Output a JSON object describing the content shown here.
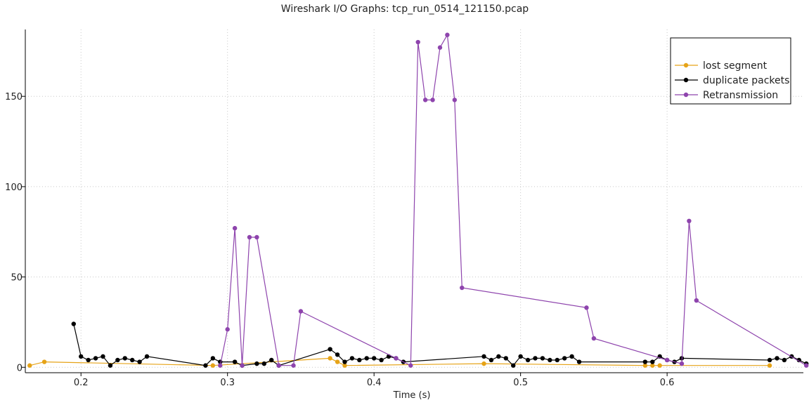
{
  "chart_data": {
    "type": "line",
    "title": "Wireshark I/O Graphs: tcp_run_0514_121150.pcap",
    "xlabel": "Time (s)",
    "ylabel": "",
    "xlim": [
      0.162,
      0.693
    ],
    "ylim": [
      -3,
      187
    ],
    "x_ticks": [
      0.2,
      0.3,
      0.4,
      0.5,
      0.6
    ],
    "x_tick_labels": [
      "0.2",
      "0.3",
      "0.4",
      "0.5",
      "0.6"
    ],
    "y_ticks": [
      0,
      50,
      100,
      150
    ],
    "y_tick_labels": [
      "0",
      "50",
      "100",
      "150"
    ],
    "grid": true,
    "legend_position": "top-right",
    "series": [
      {
        "name": "lost segment",
        "color": "#e6a317",
        "points": [
          [
            0.165,
            1
          ],
          [
            0.175,
            3
          ],
          [
            0.29,
            1
          ],
          [
            0.37,
            5
          ],
          [
            0.375,
            3
          ],
          [
            0.38,
            1
          ],
          [
            0.475,
            2
          ],
          [
            0.585,
            1
          ],
          [
            0.59,
            1
          ],
          [
            0.595,
            1
          ],
          [
            0.67,
            1
          ]
        ]
      },
      {
        "name": "duplicate packets",
        "color": "#000000",
        "points": [
          [
            0.195,
            24
          ],
          [
            0.2,
            6
          ],
          [
            0.205,
            4
          ],
          [
            0.21,
            5
          ],
          [
            0.215,
            6
          ],
          [
            0.22,
            1
          ],
          [
            0.225,
            4
          ],
          [
            0.23,
            5
          ],
          [
            0.235,
            4
          ],
          [
            0.24,
            3
          ],
          [
            0.245,
            6
          ],
          [
            0.285,
            1
          ],
          [
            0.29,
            5
          ],
          [
            0.295,
            3
          ],
          [
            0.305,
            3
          ],
          [
            0.31,
            1
          ],
          [
            0.32,
            2
          ],
          [
            0.325,
            2
          ],
          [
            0.33,
            4
          ],
          [
            0.335,
            1
          ],
          [
            0.37,
            10
          ],
          [
            0.375,
            7
          ],
          [
            0.38,
            3
          ],
          [
            0.385,
            5
          ],
          [
            0.39,
            4
          ],
          [
            0.395,
            5
          ],
          [
            0.4,
            5
          ],
          [
            0.405,
            4
          ],
          [
            0.41,
            6
          ],
          [
            0.415,
            5
          ],
          [
            0.42,
            3
          ],
          [
            0.475,
            6
          ],
          [
            0.48,
            4
          ],
          [
            0.485,
            6
          ],
          [
            0.49,
            5
          ],
          [
            0.495,
            1
          ],
          [
            0.5,
            6
          ],
          [
            0.505,
            4
          ],
          [
            0.51,
            5
          ],
          [
            0.515,
            5
          ],
          [
            0.52,
            4
          ],
          [
            0.525,
            4
          ],
          [
            0.53,
            5
          ],
          [
            0.535,
            6
          ],
          [
            0.54,
            3
          ],
          [
            0.585,
            3
          ],
          [
            0.59,
            3
          ],
          [
            0.595,
            6
          ],
          [
            0.6,
            4
          ],
          [
            0.605,
            3
          ],
          [
            0.61,
            5
          ],
          [
            0.67,
            4
          ],
          [
            0.675,
            5
          ],
          [
            0.68,
            4
          ],
          [
            0.685,
            6
          ],
          [
            0.69,
            4
          ],
          [
            0.695,
            2
          ]
        ]
      },
      {
        "name": "Retransmission",
        "color": "#8e44ad",
        "points": [
          [
            0.295,
            1
          ],
          [
            0.3,
            21
          ],
          [
            0.305,
            77
          ],
          [
            0.31,
            1
          ],
          [
            0.315,
            72
          ],
          [
            0.32,
            72
          ],
          [
            0.335,
            1
          ],
          [
            0.345,
            1
          ],
          [
            0.35,
            31
          ],
          [
            0.415,
            5
          ],
          [
            0.425,
            1
          ],
          [
            0.43,
            180
          ],
          [
            0.435,
            148
          ],
          [
            0.44,
            148
          ],
          [
            0.445,
            177
          ],
          [
            0.45,
            184
          ],
          [
            0.455,
            148
          ],
          [
            0.46,
            44
          ],
          [
            0.545,
            33
          ],
          [
            0.55,
            16
          ],
          [
            0.6,
            4
          ],
          [
            0.61,
            2
          ],
          [
            0.615,
            81
          ],
          [
            0.62,
            37
          ],
          [
            0.695,
            1
          ]
        ]
      }
    ]
  }
}
